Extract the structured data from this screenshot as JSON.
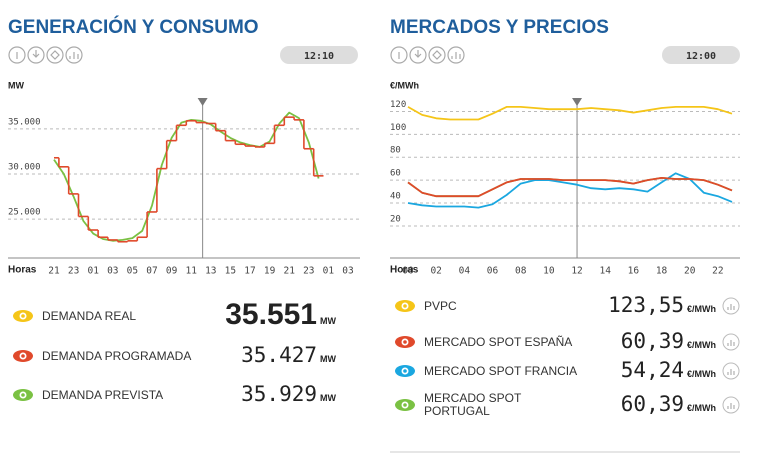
{
  "chart_data": [
    {
      "type": "line",
      "title": "GENERACIÓN Y CONSUMO",
      "time": "12:10",
      "y_label": "MW",
      "x_label": "Horas",
      "unit": "MW",
      "categories": [
        "21",
        null,
        "23",
        null,
        "01",
        null,
        "03",
        null,
        "05",
        null,
        "07",
        null,
        "09",
        null,
        "11",
        null,
        "13",
        null,
        "15",
        null,
        "17",
        null,
        "19",
        null,
        "21",
        null,
        "23",
        null,
        "01",
        null,
        "03"
      ],
      "ylim": [
        20700,
        38200
      ],
      "yticks": [
        {
          "value": 25000,
          "label": "25.000"
        },
        {
          "value": 30000,
          "label": "30.000"
        },
        {
          "value": 35000,
          "label": "35.000"
        }
      ],
      "grid": true,
      "series": [
        {
          "name": "DEMANDA REAL",
          "color": "#f5c518",
          "current": {
            "value": 35551,
            "label": "35.551"
          }
        },
        {
          "name": "DEMANDA PROGRAMADA",
          "color": "#e0492b",
          "style": "step",
          "current": {
            "value": 35427,
            "label": "35.427"
          },
          "values": [
            31800,
            30800,
            27800,
            25300,
            23800,
            23000,
            22700,
            22500,
            22600,
            23000,
            25800,
            30600,
            33700,
            35400,
            35900,
            35700,
            35600,
            34800,
            33700,
            33300,
            33100,
            33000,
            33400,
            35400,
            36300,
            36000,
            32800,
            29800,
            null,
            null,
            null
          ]
        },
        {
          "name": "DEMANDA PREVISTA",
          "color": "#7ac143",
          "current": {
            "value": 35929,
            "label": "35.929"
          },
          "values": [
            31600,
            30000,
            27500,
            24800,
            23400,
            22800,
            22600,
            22700,
            22900,
            23700,
            26500,
            31000,
            34000,
            35700,
            36000,
            35900,
            35500,
            34700,
            34000,
            33500,
            33200,
            33000,
            33600,
            35600,
            36800,
            36200,
            33500,
            29500,
            null,
            null,
            null
          ]
        }
      ]
    },
    {
      "type": "line",
      "title": "MERCADOS Y PRECIOS",
      "time": "12:00",
      "y_label": "€/MWh",
      "x_label": "Horas",
      "unit": "€/MWh",
      "categories": [
        "00",
        null,
        "02",
        null,
        "04",
        null,
        "06",
        null,
        "08",
        null,
        "10",
        null,
        "12",
        null,
        "14",
        null,
        "16",
        null,
        "18",
        null,
        "20",
        null,
        "22",
        null
      ],
      "ylim": [
        -8,
        130
      ],
      "yticks": [
        20,
        40,
        60,
        80,
        100,
        120
      ],
      "grid": true,
      "series": [
        {
          "name": "PVPC",
          "color": "#f5c518",
          "current": {
            "value": 123.55,
            "label": "123,55"
          },
          "values": [
            124,
            117,
            114,
            113,
            113,
            113,
            118,
            124,
            124,
            123,
            122,
            122,
            122,
            123,
            122,
            121,
            119,
            121,
            123,
            124,
            124,
            124,
            122,
            118
          ]
        },
        {
          "name": "MERCADO SPOT ESPAÑA",
          "color": "#e0492b",
          "current": {
            "value": 60.39,
            "label": "60,39"
          },
          "values": [
            58,
            49,
            46,
            46,
            46,
            46,
            52,
            58,
            61,
            61,
            61,
            60,
            60,
            60,
            60,
            59,
            57,
            60,
            62,
            61,
            61,
            60,
            56,
            51
          ]
        },
        {
          "name": "MERCADO SPOT FRANCIA",
          "color": "#1aa7e0",
          "current": {
            "value": 54.24,
            "label": "54,24"
          },
          "values": [
            40,
            38,
            37,
            37,
            37,
            36,
            39,
            47,
            57,
            60,
            60,
            58,
            56,
            53,
            52,
            53,
            52,
            50,
            58,
            66,
            61,
            49,
            46,
            41
          ]
        },
        {
          "name": "MERCADO SPOT PORTUGAL",
          "color": "#7ac143",
          "current": {
            "value": 60.39,
            "label": "60,39"
          },
          "values": [
            58,
            49,
            46,
            46,
            46,
            46,
            52,
            58,
            61,
            61,
            61,
            60,
            60,
            60,
            60,
            59,
            57,
            60,
            62,
            61,
            61,
            60,
            56,
            51
          ]
        }
      ]
    }
  ]
}
